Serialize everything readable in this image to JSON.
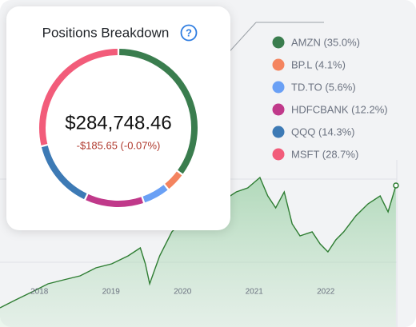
{
  "chart_data": [
    {
      "type": "pie",
      "title": "Positions Breakdown",
      "center_label": "$284,748.46",
      "center_sublabel": "-$185.65 (-0.07%)",
      "categories": [
        "AMZN (35.0%)",
        "BP.L (4.1%)",
        "TD.TO (5.6%)",
        "HDFCBANK (12.2%)",
        "QQQ (14.3%)",
        "MSFT (28.7%)"
      ],
      "values": [
        35.0,
        4.1,
        5.6,
        12.2,
        14.3,
        28.7
      ],
      "colors": [
        "#3a7d4e",
        "#f4845f",
        "#6aa0f5",
        "#c0398a",
        "#3d7ab5",
        "#f25c7a"
      ]
    },
    {
      "type": "line",
      "color": "#2e7d32",
      "x": [
        2017.45,
        2017.67,
        2017.9,
        2018.12,
        2018.34,
        2018.57,
        2018.79,
        2019.01,
        2019.24,
        2019.41,
        2019.48,
        2019.54,
        2019.6,
        2019.68,
        2019.85,
        2019.96,
        2020.13,
        2020.35,
        2020.58,
        2020.75,
        2020.91,
        2021.08,
        2021.19,
        2021.3,
        2021.42,
        2021.53,
        2021.64,
        2021.81,
        2021.92,
        2022.03,
        2022.14,
        2022.25,
        2022.42,
        2022.59,
        2022.76,
        2022.87,
        2022.98
      ],
      "values": [
        7.5,
        12.5,
        17.5,
        22.5,
        25,
        27.5,
        32.5,
        35,
        40,
        45,
        35,
        22.5,
        30,
        40,
        55,
        60,
        57.5,
        65,
        75,
        80,
        82.5,
        89,
        77.5,
        70,
        80,
        60,
        52.5,
        55,
        47.5,
        42.5,
        50,
        55,
        65,
        72.5,
        77.5,
        67.5,
        84
      ],
      "xlim": [
        2017.45,
        2023.26
      ],
      "ylim": [
        0,
        100
      ],
      "xticks": [
        2018,
        2019,
        2020,
        2021,
        2022
      ]
    }
  ]
}
